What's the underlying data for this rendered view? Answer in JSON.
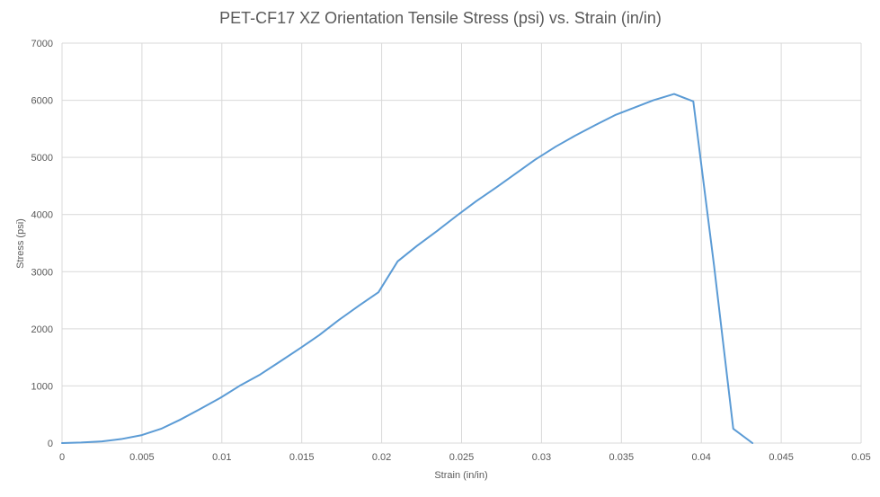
{
  "chart_data": {
    "type": "line",
    "title": "PET-CF17 XZ Orientation Tensile Stress (psi) vs. Strain (in/in)",
    "xlabel": "Strain (in/in)",
    "ylabel": "Stress (psi)",
    "xlim": [
      0,
      0.05
    ],
    "ylim": [
      0,
      7000
    ],
    "x_ticks": [
      0,
      0.005,
      0.01,
      0.015,
      0.02,
      0.025,
      0.03,
      0.035,
      0.04,
      0.045,
      0.05
    ],
    "x_tick_labels": [
      "0",
      "0.005",
      "0.01",
      "0.015",
      "0.02",
      "0.025",
      "0.03",
      "0.035",
      "0.04",
      "0.045",
      "0.05"
    ],
    "y_ticks": [
      0,
      1000,
      2000,
      3000,
      4000,
      5000,
      6000,
      7000
    ],
    "y_tick_labels": [
      "0",
      "1000",
      "2000",
      "3000",
      "4000",
      "5000",
      "6000",
      "7000"
    ],
    "grid": true,
    "legend": "none",
    "series": [
      {
        "color": "#5b9bd5",
        "x": [
          0,
          0.0012,
          0.0025,
          0.0037,
          0.005,
          0.0062,
          0.0074,
          0.0086,
          0.0099,
          0.0111,
          0.0124,
          0.0136,
          0.0149,
          0.0161,
          0.0173,
          0.0186,
          0.0198,
          0.021,
          0.0222,
          0.0235,
          0.0247,
          0.0259,
          0.0272,
          0.0284,
          0.0296,
          0.0309,
          0.0321,
          0.0334,
          0.0346,
          0.0358,
          0.037,
          0.0383,
          0.0395,
          0.0408,
          0.042,
          0.0432
        ],
        "y": [
          0,
          10,
          30,
          70,
          140,
          250,
          410,
          590,
          790,
          1000,
          1200,
          1420,
          1660,
          1890,
          2150,
          2410,
          2640,
          3180,
          3450,
          3720,
          3980,
          4230,
          4480,
          4720,
          4960,
          5190,
          5380,
          5570,
          5740,
          5870,
          6000,
          6110,
          5980,
          3100,
          250,
          0
        ]
      }
    ]
  }
}
